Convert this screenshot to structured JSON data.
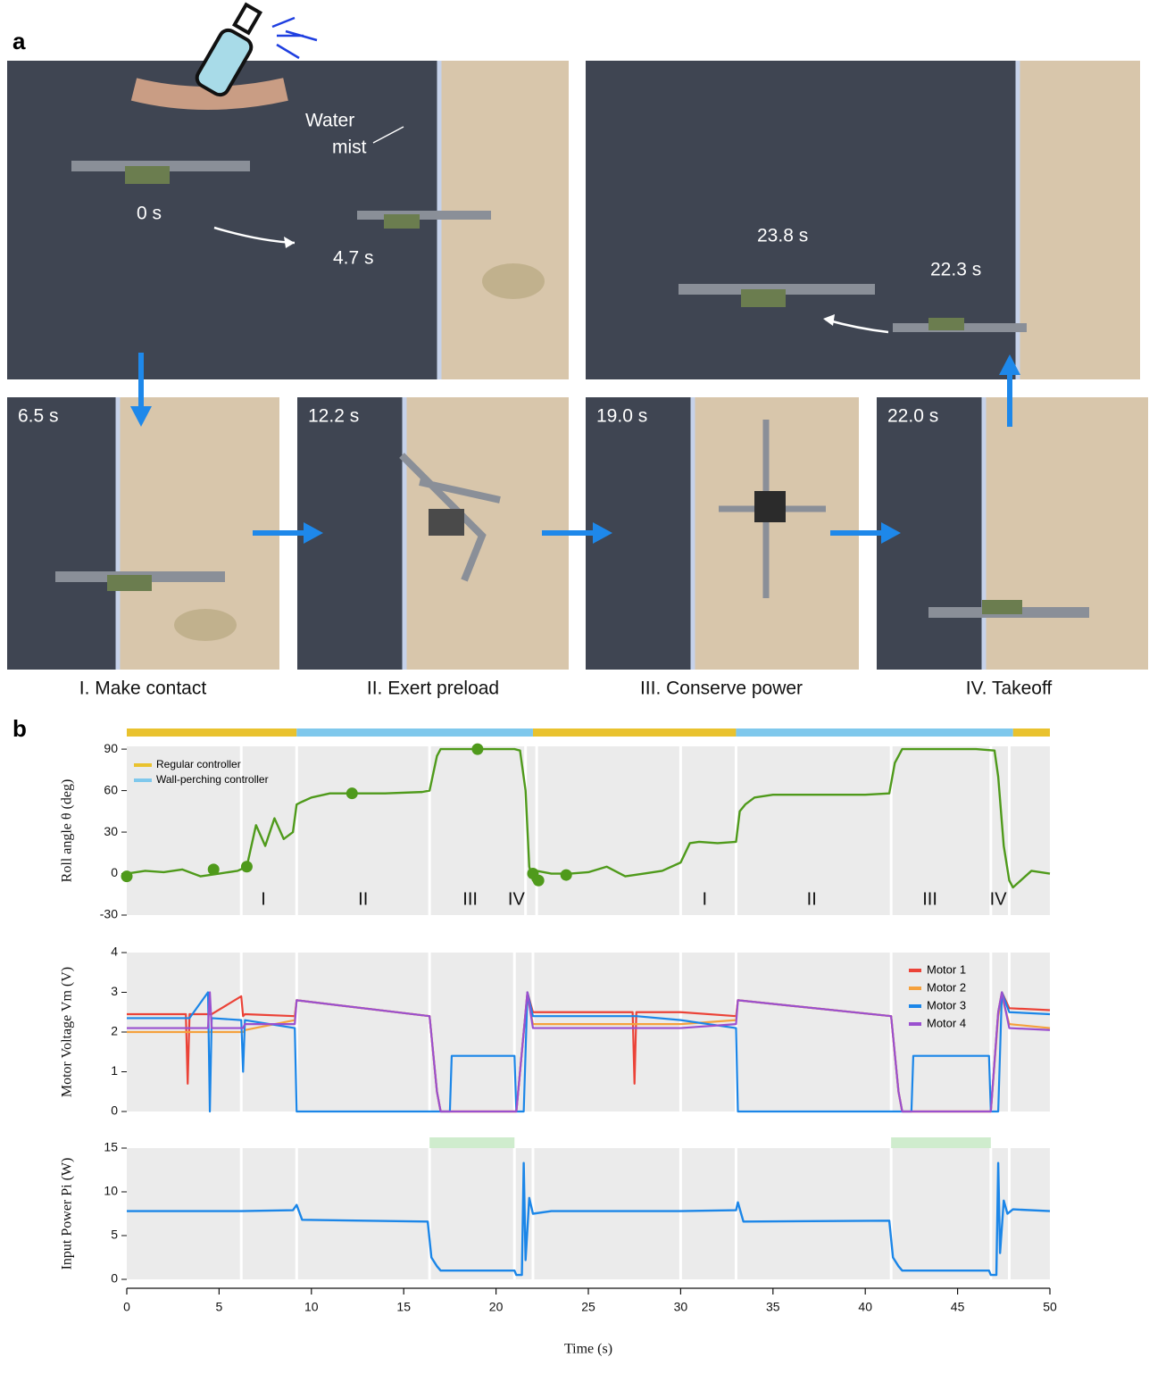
{
  "panel_a": {
    "label": "a",
    "photos": [
      {
        "times": [
          "0 s",
          "4.7 s"
        ],
        "annotation": [
          "Water",
          "mist"
        ]
      },
      {
        "times": [
          "23.8 s",
          "22.3 s"
        ]
      },
      {
        "times": [
          "6.5 s"
        ],
        "caption": "I. Make contact"
      },
      {
        "times": [
          "12.2 s"
        ],
        "caption": "II. Exert preload"
      },
      {
        "times": [
          "19.0 s"
        ],
        "caption": "III. Conserve power"
      },
      {
        "times": [
          "22.0 s"
        ],
        "caption": "IV. Takeoff"
      }
    ]
  },
  "panel_b": {
    "label": "b"
  },
  "chart_data": [
    {
      "type": "line",
      "y_label": "Roll angle θ (deg)",
      "color": "#4f9a1b",
      "xlim": [
        0,
        50
      ],
      "ylim": [
        -30,
        92
      ],
      "yticks": [
        -30,
        0,
        30,
        60,
        90
      ],
      "x": [
        0,
        1,
        2,
        3,
        4,
        5,
        6,
        6.5,
        7,
        7.5,
        8,
        8.5,
        9,
        9.2,
        9.5,
        10,
        11,
        12,
        14,
        16,
        16.4,
        16.8,
        17,
        18,
        19,
        20,
        21,
        21.3,
        21.6,
        21.8,
        22,
        22.2,
        23,
        24,
        25,
        26,
        27,
        28,
        29,
        30,
        30.5,
        31,
        32,
        33,
        33.2,
        33.5,
        34,
        35,
        36,
        38,
        40,
        41.3,
        41.6,
        42,
        43,
        44,
        45,
        46,
        47,
        47.2,
        47.5,
        47.8,
        48,
        49,
        50
      ],
      "values": [
        0,
        2,
        1,
        3,
        -2,
        0,
        2,
        5,
        35,
        20,
        40,
        25,
        30,
        50,
        52,
        55,
        58,
        58,
        58,
        59,
        60,
        85,
        90,
        90,
        90,
        90,
        90,
        89,
        60,
        5,
        -5,
        2,
        0,
        0,
        1,
        5,
        -2,
        0,
        2,
        8,
        22,
        23,
        22,
        23,
        45,
        50,
        55,
        57,
        57,
        57,
        57,
        58,
        80,
        90,
        90,
        90,
        90,
        90,
        89,
        70,
        20,
        -5,
        -10,
        2,
        0
      ],
      "markers": {
        "x": [
          0,
          4.7,
          6.5,
          12.2,
          19,
          22,
          22.3,
          23.8
        ],
        "values": [
          -2,
          3,
          5,
          58,
          90,
          0,
          -5,
          -1
        ]
      },
      "phase_lines": [
        6.2,
        9.2,
        16.4,
        21.6,
        22.2,
        30,
        33,
        41.4,
        46.8,
        47.8
      ],
      "phase_labels": {
        "x": [
          7.4,
          12.8,
          18.6,
          21.1,
          31.3,
          37.1,
          43.5,
          47.2
        ],
        "labels": [
          "I",
          "II",
          "III",
          "IV",
          "I",
          "II",
          "III",
          "IV"
        ]
      },
      "controllers": [
        {
          "name": "Regular controller",
          "color": "#e9c22e",
          "intervals": [
            [
              0,
              9.2
            ],
            [
              22,
              33
            ],
            [
              48,
              50
            ]
          ]
        },
        {
          "name": "Wall-perching controller",
          "color": "#7fc8ec",
          "intervals": [
            [
              9.2,
              22
            ],
            [
              33,
              48
            ]
          ]
        }
      ],
      "legend": "upper left"
    },
    {
      "type": "line",
      "y_label": "Motor Voltage Vm (V)",
      "xlim": [
        0,
        50
      ],
      "ylim": [
        0,
        4
      ],
      "yticks": [
        0,
        1,
        2,
        3,
        4
      ],
      "x": [
        0,
        3.2,
        3.3,
        3.4,
        4.4,
        4.5,
        4.6,
        6.2,
        6.3,
        6.4,
        9.1,
        9.2,
        16.4,
        16.8,
        17,
        17.5,
        17.6,
        21,
        21.1,
        21.5,
        21.7,
        22,
        27.4,
        27.5,
        27.6,
        30,
        33,
        33.1,
        41.4,
        41.8,
        42,
        42.5,
        42.6,
        46.7,
        46.8,
        47.2,
        47.4,
        47.8,
        50
      ],
      "series": [
        {
          "name": "Motor 1",
          "color": "#eb4338",
          "values": [
            2.45,
            2.45,
            0.7,
            2.45,
            2.45,
            2.45,
            2.45,
            2.9,
            2.4,
            2.45,
            2.4,
            2.8,
            2.4,
            0.5,
            0,
            0,
            0,
            0,
            0,
            2.0,
            3.0,
            2.5,
            2.5,
            0.7,
            2.5,
            2.5,
            2.4,
            2.8,
            2.4,
            0.5,
            0,
            0,
            0,
            0,
            0,
            2.5,
            3.0,
            2.6,
            2.55
          ]
        },
        {
          "name": "Motor 2",
          "color": "#f5a13d",
          "values": [
            2.0,
            2.0,
            2.0,
            2.0,
            2.0,
            2.0,
            2.0,
            2.0,
            2.0,
            2.05,
            2.3,
            2.8,
            2.4,
            0.5,
            0,
            0,
            0,
            0,
            0,
            2.0,
            2.9,
            2.2,
            2.2,
            2.2,
            2.2,
            2.2,
            2.3,
            2.8,
            2.4,
            0.5,
            0,
            0,
            0,
            0,
            0,
            2.4,
            2.9,
            2.2,
            2.1
          ]
        },
        {
          "name": "Motor 3",
          "color": "#1b86e8",
          "values": [
            2.35,
            2.35,
            2.35,
            2.35,
            3.0,
            0,
            2.35,
            2.3,
            1.0,
            2.3,
            2.1,
            0,
            0,
            0,
            0,
            0,
            1.4,
            1.4,
            0,
            0,
            3.0,
            2.4,
            2.4,
            2.4,
            2.4,
            2.3,
            2.1,
            0,
            0,
            0,
            0,
            0,
            1.4,
            1.4,
            0,
            0,
            3.0,
            2.5,
            2.45
          ]
        },
        {
          "name": "Motor 4",
          "color": "#9a50cf",
          "values": [
            2.1,
            2.1,
            2.1,
            2.1,
            2.1,
            3.0,
            2.1,
            2.1,
            2.1,
            2.2,
            2.2,
            2.8,
            2.4,
            0.5,
            0,
            0,
            0,
            0,
            0,
            2.0,
            3.0,
            2.1,
            2.1,
            2.1,
            2.1,
            2.1,
            2.2,
            2.8,
            2.4,
            0.5,
            0,
            0,
            0,
            0,
            0,
            2.5,
            3.0,
            2.1,
            2.05
          ]
        }
      ],
      "phase_lines": [
        6.2,
        9.2,
        16.4,
        21,
        22,
        30,
        33,
        41.4,
        46.8,
        47.8
      ],
      "legend": "upper right"
    },
    {
      "type": "line",
      "y_label": "Input Power Pi (W)",
      "color": "#1b86e8",
      "xlim": [
        0,
        50
      ],
      "ylim": [
        0,
        15
      ],
      "yticks": [
        0,
        5,
        10,
        15
      ],
      "x": [
        0,
        5,
        6.2,
        9,
        9.2,
        9.5,
        16.3,
        16.5,
        16.8,
        17,
        21,
        21.1,
        21.4,
        21.5,
        21.6,
        21.8,
        22,
        23,
        30,
        33,
        33.1,
        33.4,
        41.3,
        41.5,
        41.8,
        42,
        46.7,
        46.8,
        47.1,
        47.2,
        47.3,
        47.5,
        47.7,
        48,
        50
      ],
      "values": [
        7.8,
        7.8,
        7.8,
        7.9,
        8.5,
        6.8,
        6.6,
        2.5,
        1.5,
        1.0,
        1.0,
        0.5,
        0.5,
        13.3,
        2.2,
        9.3,
        7.5,
        7.8,
        7.8,
        7.9,
        8.8,
        6.6,
        6.7,
        2.5,
        1.5,
        1.0,
        1.0,
        0.5,
        0.5,
        13.3,
        3.0,
        9.0,
        7.5,
        8.0,
        7.8
      ],
      "highlight": {
        "intervals": [
          [
            16.4,
            21
          ],
          [
            41.4,
            46.8
          ]
        ],
        "color": "#cfeccd"
      },
      "phase_lines": [
        6.2,
        9.2,
        16.4,
        21,
        22,
        30,
        33,
        41.4,
        46.8,
        47.8
      ],
      "xticks": [
        0,
        5,
        10,
        15,
        20,
        25,
        30,
        35,
        40,
        45,
        50
      ],
      "x_label": "Time (s)"
    }
  ]
}
